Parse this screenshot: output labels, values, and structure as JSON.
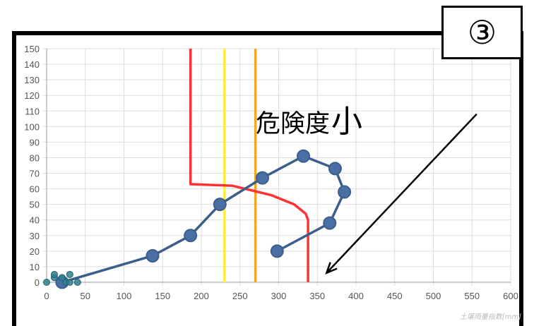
{
  "badge": {
    "label": "③"
  },
  "annotation": {
    "text_small": "危険度",
    "text_big": "小"
  },
  "colors": {
    "main_series": "#3b5f8a",
    "early_series": "#2f7f8f",
    "critical_line": "#ff3333",
    "yellow_line": "#ffee33",
    "orange_line": "#f5a623",
    "grid": "#dddddd",
    "arrow": "#000000"
  },
  "chart_data": {
    "type": "line",
    "xlabel": "土壌雨量指数[mm]",
    "ylabel": "",
    "xlim": [
      0,
      600
    ],
    "ylim": [
      0,
      150
    ],
    "x_ticks": [
      0,
      50,
      100,
      150,
      200,
      250,
      300,
      350,
      400,
      450,
      500,
      550,
      600
    ],
    "y_ticks": [
      0,
      10,
      20,
      30,
      40,
      50,
      60,
      70,
      80,
      90,
      100,
      110,
      120,
      130,
      140,
      150
    ],
    "grid": true,
    "series": [
      {
        "role": "main_snake_line",
        "points": [
          [
            20,
            0
          ],
          [
            137,
            17
          ],
          [
            186,
            30
          ],
          [
            224,
            50
          ],
          [
            279,
            67
          ],
          [
            332,
            81
          ],
          [
            373,
            73
          ],
          [
            385,
            58
          ],
          [
            366,
            38
          ],
          [
            298,
            20
          ]
        ]
      },
      {
        "role": "early_points",
        "points": [
          [
            0,
            0
          ],
          [
            10,
            3
          ],
          [
            10,
            5
          ],
          [
            20,
            3
          ],
          [
            25,
            0
          ],
          [
            30,
            0
          ],
          [
            30,
            5
          ],
          [
            40,
            0
          ]
        ]
      },
      {
        "role": "critical_line",
        "points": [
          [
            186,
            150
          ],
          [
            186,
            63
          ],
          [
            240,
            62
          ],
          [
            290,
            56
          ],
          [
            320,
            50
          ],
          [
            335,
            44
          ],
          [
            338,
            40
          ],
          [
            338,
            0
          ]
        ]
      },
      {
        "role": "yellow_line",
        "points": [
          [
            230,
            0
          ],
          [
            230,
            150
          ]
        ]
      },
      {
        "role": "orange_line",
        "points": [
          [
            270,
            0
          ],
          [
            270,
            150
          ]
        ]
      }
    ],
    "arrow": {
      "from": [
        556,
        108
      ],
      "to": [
        362,
        6
      ]
    }
  }
}
